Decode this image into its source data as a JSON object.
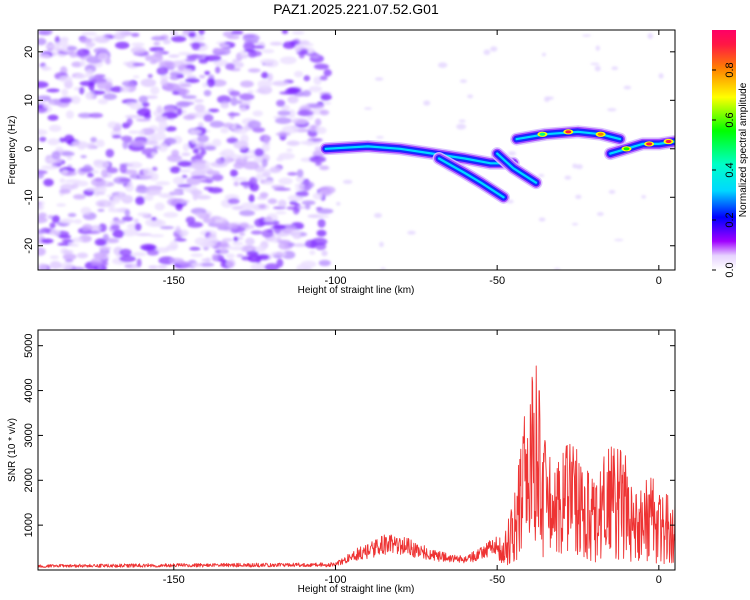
{
  "title": "PAZ1.2025.221.07.52.G01",
  "colors": {
    "snr_line": "#ee3333",
    "spectrogram_low": "#b388ff",
    "spectrogram_mid": "#00d8ff",
    "spectrogram_high": "#ff1744"
  },
  "chart_data": [
    {
      "type": "heatmap",
      "name": "spectrogram",
      "xlabel": "Height of straight line (km)",
      "ylabel": "Frequency (Hz)",
      "xlim": [
        -192,
        5
      ],
      "ylim": [
        -25,
        24.5
      ],
      "xticks": [
        -150,
        -100,
        -50,
        0
      ],
      "yticks": [
        -20,
        -10,
        0,
        10,
        20
      ],
      "colorbar": {
        "label": "Normalized spectral amplitude",
        "range": [
          0,
          0.96
        ],
        "ticks": [
          0.0,
          0.2,
          0.4,
          0.6,
          0.8
        ]
      },
      "noise_region_km": [
        -192,
        -104
      ],
      "ridges": [
        {
          "x": [
            -103,
            -90,
            -80,
            -70,
            -60,
            -52,
            -45
          ],
          "y": [
            0,
            0.5,
            0,
            -1,
            -2,
            -3,
            -3
          ]
        },
        {
          "x": [
            -68,
            -60,
            -55,
            -48
          ],
          "y": [
            -2,
            -5,
            -7,
            -10
          ]
        },
        {
          "x": [
            -50,
            -45,
            -38
          ],
          "y": [
            -1,
            -4,
            -7
          ]
        },
        {
          "x": [
            -44,
            -35,
            -25,
            -18,
            -12
          ],
          "y": [
            2,
            3,
            3.5,
            3,
            2
          ]
        },
        {
          "x": [
            -15,
            -10,
            -5,
            0,
            5
          ],
          "y": [
            -1,
            0,
            1,
            1,
            1.5
          ]
        }
      ]
    },
    {
      "type": "line",
      "name": "snr",
      "xlabel": "Height of straight line (km)",
      "ylabel": "SNR (10 * v/v)",
      "xlim": [
        -192,
        5
      ],
      "ylim": [
        0,
        5350
      ],
      "xticks": [
        -150,
        -100,
        -50,
        0
      ],
      "yticks": [
        1000,
        2000,
        3000,
        4000,
        5000
      ],
      "envelope": {
        "x": [
          -192,
          -150,
          -110,
          -100,
          -95,
          -90,
          -85,
          -80,
          -75,
          -70,
          -65,
          -60,
          -55,
          -52,
          -48,
          -45,
          -43,
          -42,
          -40,
          -38,
          -36,
          -34,
          -32,
          -30,
          -28,
          -25,
          -22,
          -20,
          -18,
          -15,
          -12,
          -10,
          -8,
          -5,
          -2,
          0,
          3,
          5
        ],
        "y": [
          120,
          140,
          150,
          160,
          420,
          550,
          750,
          750,
          600,
          450,
          350,
          300,
          500,
          650,
          900,
          1500,
          2500,
          3500,
          4200,
          4500,
          3600,
          2700,
          2100,
          2600,
          2800,
          2600,
          2200,
          1900,
          2400,
          2700,
          2900,
          2400,
          1800,
          1900,
          2100,
          1800,
          1600,
          1500
        ]
      }
    }
  ]
}
